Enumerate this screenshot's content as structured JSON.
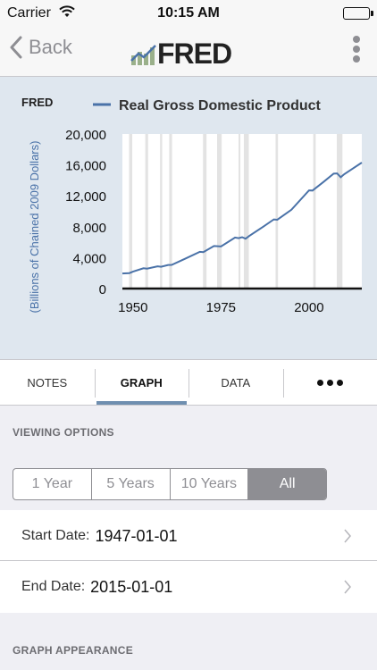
{
  "status": {
    "carrier": "Carrier",
    "time": "10:15 AM"
  },
  "nav": {
    "back_label": "Back",
    "logo_text": "FRED"
  },
  "chart_data": {
    "type": "line",
    "title": "Real Gross Domestic Product",
    "watermark": "FRED",
    "ylabel": "(Billions of Chained 2009 Dollars)",
    "xlabel": "",
    "xlim": [
      1947,
      2015
    ],
    "ylim": [
      0,
      20000
    ],
    "yticks": [
      0,
      4000,
      8000,
      12000,
      16000,
      20000
    ],
    "ytick_labels": [
      "0",
      "4,000",
      "8,000",
      "12,000",
      "16,000",
      "20,000"
    ],
    "xticks": [
      1950,
      1975,
      2000
    ],
    "xtick_labels": [
      "1950",
      "1975",
      "2000"
    ],
    "recessions": [
      [
        1948.9,
        1949.8
      ],
      [
        1953.5,
        1954.3
      ],
      [
        1957.7,
        1958.3
      ],
      [
        1960.3,
        1961.1
      ],
      [
        1969.9,
        1970.9
      ],
      [
        1973.9,
        1975.2
      ],
      [
        1980.0,
        1980.5
      ],
      [
        1981.5,
        1982.9
      ],
      [
        1990.5,
        1991.2
      ],
      [
        2001.2,
        2001.9
      ],
      [
        2007.9,
        2009.5
      ]
    ],
    "series": [
      {
        "name": "Real Gross Domestic Product",
        "color": "#4a72a8",
        "x": [
          1947,
          1949,
          1950,
          1953,
          1954,
          1957,
          1958,
          1960,
          1961,
          1965,
          1969,
          1970,
          1973,
          1975,
          1979,
          1980,
          1981,
          1982,
          1983,
          1987,
          1990,
          1991,
          1995,
          2000,
          2001,
          2004,
          2007,
          2008,
          2009,
          2010,
          2012,
          2015
        ],
        "values": [
          1950,
          2000,
          2180,
          2620,
          2580,
          2880,
          2820,
          3050,
          3060,
          3900,
          4750,
          4720,
          5500,
          5450,
          6600,
          6520,
          6650,
          6450,
          6800,
          8000,
          8950,
          8900,
          10200,
          12700,
          12680,
          13750,
          14870,
          14900,
          14400,
          14800,
          15400,
          16300
        ]
      }
    ]
  },
  "tabs": [
    {
      "label": "NOTES"
    },
    {
      "label": "GRAPH"
    },
    {
      "label": "DATA"
    }
  ],
  "viewing_options": {
    "heading": "VIEWING OPTIONS",
    "segments": [
      "1 Year",
      "5 Years",
      "10 Years",
      "All"
    ],
    "selected": "All",
    "start_label": "Start Date:",
    "start_value": "1947-01-01",
    "end_label": "End Date:",
    "end_value": "2015-01-01"
  },
  "graph_appearance": {
    "heading": "GRAPH APPEARANCE"
  }
}
